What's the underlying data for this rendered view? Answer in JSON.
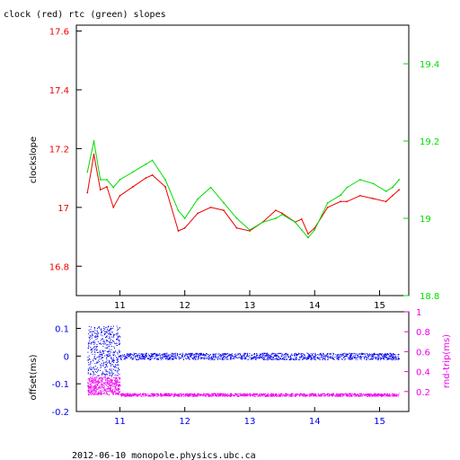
{
  "title": "clock (red) rtc (green) slopes",
  "footer": "2012-06-10 monopole.physics.ubc.ca",
  "colors": {
    "clock": "#ee0000",
    "rtc": "#00dd00",
    "offset": "#0000ee",
    "rndtrip": "#ee00ee",
    "axis": "#000000"
  },
  "chart_data": [
    {
      "type": "line",
      "title": "clock (red) rtc (green) slopes",
      "ylabel": "clockslope",
      "xlim": [
        10.33,
        15.45
      ],
      "ylim": [
        16.7,
        17.62
      ],
      "y2lim": [
        18.8,
        19.5
      ],
      "x_ticks": [
        11,
        12,
        13,
        14,
        15
      ],
      "y_ticks": [
        16.8,
        17,
        17.2,
        17.4,
        17.6
      ],
      "y2_ticks": [
        18.8,
        19,
        19.2,
        19.4
      ],
      "series": [
        {
          "name": "clock",
          "axis": "left",
          "x": [
            10.5,
            10.6,
            10.7,
            10.8,
            10.9,
            11.0,
            11.2,
            11.4,
            11.5,
            11.7,
            11.9,
            12.0,
            12.2,
            12.4,
            12.6,
            12.8,
            13.0,
            13.2,
            13.4,
            13.5,
            13.7,
            13.8,
            13.9,
            14.0,
            14.2,
            14.4,
            14.5,
            14.7,
            14.9,
            15.1,
            15.2,
            15.3
          ],
          "y": [
            17.05,
            17.18,
            17.06,
            17.07,
            17.0,
            17.04,
            17.07,
            17.1,
            17.11,
            17.07,
            16.92,
            16.93,
            16.98,
            17.0,
            16.99,
            16.93,
            16.92,
            16.95,
            16.99,
            16.98,
            16.95,
            16.96,
            16.91,
            16.93,
            17.0,
            17.02,
            17.02,
            17.04,
            17.03,
            17.02,
            17.04,
            17.06
          ]
        },
        {
          "name": "rtc",
          "axis": "right",
          "x": [
            10.5,
            10.6,
            10.7,
            10.8,
            10.9,
            11.0,
            11.2,
            11.4,
            11.5,
            11.7,
            11.9,
            12.0,
            12.2,
            12.4,
            12.6,
            12.8,
            13.0,
            13.2,
            13.4,
            13.5,
            13.7,
            13.8,
            13.9,
            14.0,
            14.2,
            14.4,
            14.5,
            14.7,
            14.9,
            15.1,
            15.2,
            15.3
          ],
          "y": [
            19.12,
            19.2,
            19.1,
            19.1,
            19.08,
            19.1,
            19.12,
            19.14,
            19.15,
            19.1,
            19.02,
            19.0,
            19.05,
            19.08,
            19.04,
            19.0,
            18.97,
            18.99,
            19.0,
            19.01,
            18.99,
            18.97,
            18.95,
            18.97,
            19.04,
            19.06,
            19.08,
            19.1,
            19.09,
            19.07,
            19.08,
            19.1
          ]
        }
      ]
    },
    {
      "type": "scatter",
      "ylabel": "offset(ms)",
      "y2label": "rnd-trip(ms)",
      "xlim": [
        10.33,
        15.45
      ],
      "ylim": [
        -0.2,
        0.16
      ],
      "y2lim": [
        0.0,
        1.0
      ],
      "x_ticks": [
        11,
        12,
        13,
        14,
        15
      ],
      "y_ticks": [
        -0.2,
        -0.1,
        0,
        0.1
      ],
      "y2_ticks": [
        0.2,
        0.4,
        0.6,
        0.8,
        1
      ],
      "series": [
        {
          "name": "offset(ms)",
          "axis": "left",
          "x_range": [
            10.5,
            15.3
          ],
          "early": {
            "x": [
              10.5,
              11.0
            ],
            "y_center": 0.02,
            "spread": 0.09
          },
          "late": {
            "x": [
              11.0,
              15.3
            ],
            "y_center": 0.0,
            "spread": 0.012
          }
        },
        {
          "name": "rnd-trip(ms)",
          "axis": "right",
          "x_range": [
            10.5,
            15.3
          ],
          "early": {
            "x": [
              10.5,
              11.0
            ],
            "y_center": 0.26,
            "spread": 0.09
          },
          "late": {
            "x": [
              11.0,
              15.3
            ],
            "y_center": 0.17,
            "spread": 0.015
          }
        }
      ]
    }
  ]
}
